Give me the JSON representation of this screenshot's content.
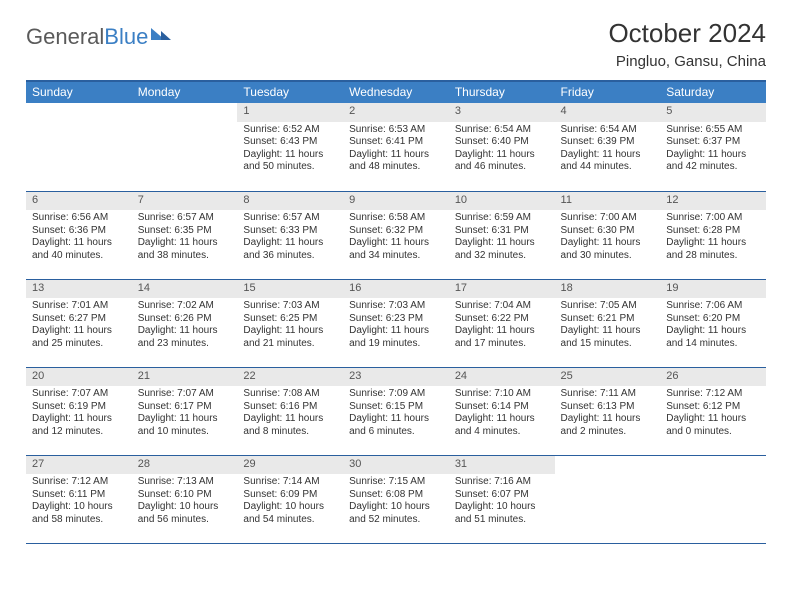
{
  "brand": {
    "part1": "General",
    "part2": "Blue"
  },
  "title": "October 2024",
  "location": "Pingluo, Gansu, China",
  "colors": {
    "header_bg": "#3b7fc4",
    "header_border": "#2a5f9e",
    "daynum_bg": "#e9e9e9",
    "text": "#333333"
  },
  "dayHeaders": [
    "Sunday",
    "Monday",
    "Tuesday",
    "Wednesday",
    "Thursday",
    "Friday",
    "Saturday"
  ],
  "weeks": [
    [
      {
        "empty": true
      },
      {
        "empty": true
      },
      {
        "n": "1",
        "sr": "Sunrise: 6:52 AM",
        "ss": "Sunset: 6:43 PM",
        "d1": "Daylight: 11 hours",
        "d2": "and 50 minutes."
      },
      {
        "n": "2",
        "sr": "Sunrise: 6:53 AM",
        "ss": "Sunset: 6:41 PM",
        "d1": "Daylight: 11 hours",
        "d2": "and 48 minutes."
      },
      {
        "n": "3",
        "sr": "Sunrise: 6:54 AM",
        "ss": "Sunset: 6:40 PM",
        "d1": "Daylight: 11 hours",
        "d2": "and 46 minutes."
      },
      {
        "n": "4",
        "sr": "Sunrise: 6:54 AM",
        "ss": "Sunset: 6:39 PM",
        "d1": "Daylight: 11 hours",
        "d2": "and 44 minutes."
      },
      {
        "n": "5",
        "sr": "Sunrise: 6:55 AM",
        "ss": "Sunset: 6:37 PM",
        "d1": "Daylight: 11 hours",
        "d2": "and 42 minutes."
      }
    ],
    [
      {
        "n": "6",
        "sr": "Sunrise: 6:56 AM",
        "ss": "Sunset: 6:36 PM",
        "d1": "Daylight: 11 hours",
        "d2": "and 40 minutes."
      },
      {
        "n": "7",
        "sr": "Sunrise: 6:57 AM",
        "ss": "Sunset: 6:35 PM",
        "d1": "Daylight: 11 hours",
        "d2": "and 38 minutes."
      },
      {
        "n": "8",
        "sr": "Sunrise: 6:57 AM",
        "ss": "Sunset: 6:33 PM",
        "d1": "Daylight: 11 hours",
        "d2": "and 36 minutes."
      },
      {
        "n": "9",
        "sr": "Sunrise: 6:58 AM",
        "ss": "Sunset: 6:32 PM",
        "d1": "Daylight: 11 hours",
        "d2": "and 34 minutes."
      },
      {
        "n": "10",
        "sr": "Sunrise: 6:59 AM",
        "ss": "Sunset: 6:31 PM",
        "d1": "Daylight: 11 hours",
        "d2": "and 32 minutes."
      },
      {
        "n": "11",
        "sr": "Sunrise: 7:00 AM",
        "ss": "Sunset: 6:30 PM",
        "d1": "Daylight: 11 hours",
        "d2": "and 30 minutes."
      },
      {
        "n": "12",
        "sr": "Sunrise: 7:00 AM",
        "ss": "Sunset: 6:28 PM",
        "d1": "Daylight: 11 hours",
        "d2": "and 28 minutes."
      }
    ],
    [
      {
        "n": "13",
        "sr": "Sunrise: 7:01 AM",
        "ss": "Sunset: 6:27 PM",
        "d1": "Daylight: 11 hours",
        "d2": "and 25 minutes."
      },
      {
        "n": "14",
        "sr": "Sunrise: 7:02 AM",
        "ss": "Sunset: 6:26 PM",
        "d1": "Daylight: 11 hours",
        "d2": "and 23 minutes."
      },
      {
        "n": "15",
        "sr": "Sunrise: 7:03 AM",
        "ss": "Sunset: 6:25 PM",
        "d1": "Daylight: 11 hours",
        "d2": "and 21 minutes."
      },
      {
        "n": "16",
        "sr": "Sunrise: 7:03 AM",
        "ss": "Sunset: 6:23 PM",
        "d1": "Daylight: 11 hours",
        "d2": "and 19 minutes."
      },
      {
        "n": "17",
        "sr": "Sunrise: 7:04 AM",
        "ss": "Sunset: 6:22 PM",
        "d1": "Daylight: 11 hours",
        "d2": "and 17 minutes."
      },
      {
        "n": "18",
        "sr": "Sunrise: 7:05 AM",
        "ss": "Sunset: 6:21 PM",
        "d1": "Daylight: 11 hours",
        "d2": "and 15 minutes."
      },
      {
        "n": "19",
        "sr": "Sunrise: 7:06 AM",
        "ss": "Sunset: 6:20 PM",
        "d1": "Daylight: 11 hours",
        "d2": "and 14 minutes."
      }
    ],
    [
      {
        "n": "20",
        "sr": "Sunrise: 7:07 AM",
        "ss": "Sunset: 6:19 PM",
        "d1": "Daylight: 11 hours",
        "d2": "and 12 minutes."
      },
      {
        "n": "21",
        "sr": "Sunrise: 7:07 AM",
        "ss": "Sunset: 6:17 PM",
        "d1": "Daylight: 11 hours",
        "d2": "and 10 minutes."
      },
      {
        "n": "22",
        "sr": "Sunrise: 7:08 AM",
        "ss": "Sunset: 6:16 PM",
        "d1": "Daylight: 11 hours",
        "d2": "and 8 minutes."
      },
      {
        "n": "23",
        "sr": "Sunrise: 7:09 AM",
        "ss": "Sunset: 6:15 PM",
        "d1": "Daylight: 11 hours",
        "d2": "and 6 minutes."
      },
      {
        "n": "24",
        "sr": "Sunrise: 7:10 AM",
        "ss": "Sunset: 6:14 PM",
        "d1": "Daylight: 11 hours",
        "d2": "and 4 minutes."
      },
      {
        "n": "25",
        "sr": "Sunrise: 7:11 AM",
        "ss": "Sunset: 6:13 PM",
        "d1": "Daylight: 11 hours",
        "d2": "and 2 minutes."
      },
      {
        "n": "26",
        "sr": "Sunrise: 7:12 AM",
        "ss": "Sunset: 6:12 PM",
        "d1": "Daylight: 11 hours",
        "d2": "and 0 minutes."
      }
    ],
    [
      {
        "n": "27",
        "sr": "Sunrise: 7:12 AM",
        "ss": "Sunset: 6:11 PM",
        "d1": "Daylight: 10 hours",
        "d2": "and 58 minutes."
      },
      {
        "n": "28",
        "sr": "Sunrise: 7:13 AM",
        "ss": "Sunset: 6:10 PM",
        "d1": "Daylight: 10 hours",
        "d2": "and 56 minutes."
      },
      {
        "n": "29",
        "sr": "Sunrise: 7:14 AM",
        "ss": "Sunset: 6:09 PM",
        "d1": "Daylight: 10 hours",
        "d2": "and 54 minutes."
      },
      {
        "n": "30",
        "sr": "Sunrise: 7:15 AM",
        "ss": "Sunset: 6:08 PM",
        "d1": "Daylight: 10 hours",
        "d2": "and 52 minutes."
      },
      {
        "n": "31",
        "sr": "Sunrise: 7:16 AM",
        "ss": "Sunset: 6:07 PM",
        "d1": "Daylight: 10 hours",
        "d2": "and 51 minutes."
      },
      {
        "empty": true
      },
      {
        "empty": true
      }
    ]
  ]
}
